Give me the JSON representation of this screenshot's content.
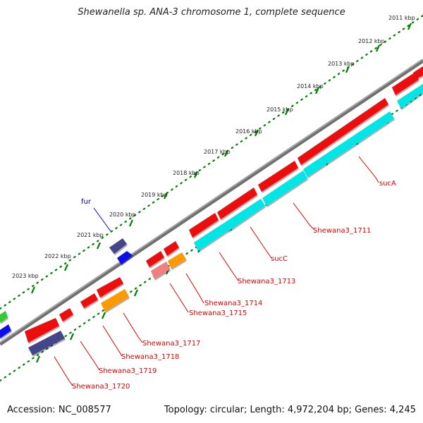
{
  "title": "Shewanella sp. ANA-3 chromosome 1, complete sequence",
  "footer": {
    "accession": "Accession: NC_008577",
    "summary": "Topology: circular; Length: 4,972,204 bp; Genes: 4,245"
  },
  "colors": {
    "backbone": "#808080",
    "forward_gene": "#44448c",
    "reverse_gene": "#ee1111",
    "cds_reverse": "#00e5e5",
    "orange_cds": "#ff9900",
    "pink_cds": "#f08080",
    "blue_cds": "#1111ee",
    "green_cds": "#33cc33",
    "tick": "#008000",
    "label_line_reverse": "#dd0000",
    "label_line_forward": "#0000cc"
  },
  "ticks": [
    "2011 kbp",
    "2012 kbp",
    "2013 kbp",
    "2014 kbp",
    "2015 kbp",
    "2016 kbp",
    "2017 kbp",
    "2018 kbp",
    "2019 kbp",
    "2020 kbp",
    "2021 kbp",
    "2022 kbp",
    "2023 kbp"
  ],
  "gene_labels": [
    {
      "id": "sucA",
      "text": "sucA",
      "strand": "reverse"
    },
    {
      "id": "shewana3-1711",
      "text": "Shewana3_1711",
      "strand": "reverse"
    },
    {
      "id": "sucC",
      "text": "sucC",
      "strand": "reverse"
    },
    {
      "id": "shewana3-1713",
      "text": "Shewana3_1713",
      "strand": "reverse"
    },
    {
      "id": "shewana3-1714",
      "text": "Shewana3_1714",
      "strand": "reverse"
    },
    {
      "id": "shewana3-1715",
      "text": "Shewana3_1715",
      "strand": "reverse"
    },
    {
      "id": "shewana3-1717",
      "text": "Shewana3_1717",
      "strand": "reverse"
    },
    {
      "id": "shewana3-1718",
      "text": "Shewana3_1718",
      "strand": "reverse"
    },
    {
      "id": "shewana3-1719",
      "text": "Shewana3_1719",
      "strand": "reverse"
    },
    {
      "id": "shewana3-1720",
      "text": "Shewana3_1720",
      "strand": "reverse"
    },
    {
      "id": "fur",
      "text": "fur",
      "strand": "forward"
    }
  ]
}
